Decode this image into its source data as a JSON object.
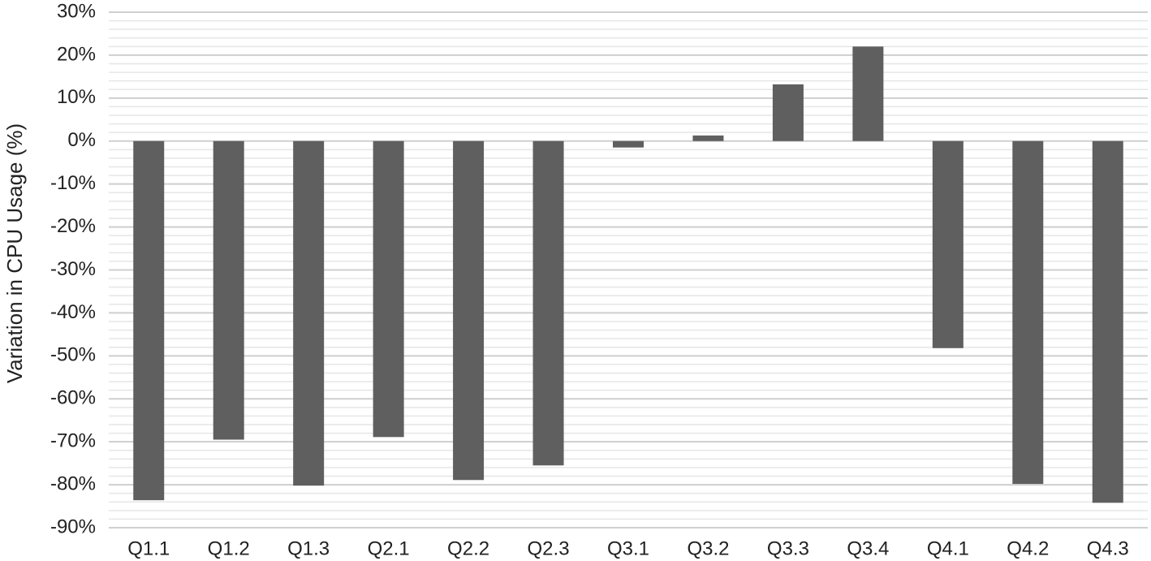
{
  "chart_data": {
    "type": "bar",
    "y_label": "Variation in CPU Usage (%)",
    "categories": [
      "Q1.1",
      "Q1.2",
      "Q1.3",
      "Q2.1",
      "Q2.2",
      "Q2.3",
      "Q3.1",
      "Q3.2",
      "Q3.3",
      "Q3.4",
      "Q4.1",
      "Q4.2",
      "Q4.3"
    ],
    "values": [
      -83.6,
      -69.5,
      -80.2,
      -68.9,
      -78.9,
      -75.5,
      -1.5,
      1.3,
      13.2,
      22.0,
      -48.2,
      -79.8,
      -84.2
    ],
    "color": "#5f5f5f",
    "ylim": [
      -90,
      30
    ],
    "yticks": [
      {
        "value": 30,
        "label": "30%"
      },
      {
        "value": 20,
        "label": "20%"
      },
      {
        "value": 10,
        "label": "10%"
      },
      {
        "value": 0,
        "label": "0%"
      },
      {
        "value": -10,
        "label": "-10%"
      },
      {
        "value": -20,
        "label": "-20%"
      },
      {
        "value": -30,
        "label": "-30%"
      },
      {
        "value": -40,
        "label": "-40%"
      },
      {
        "value": -50,
        "label": "-50%"
      },
      {
        "value": -60,
        "label": "-60%"
      },
      {
        "value": -70,
        "label": "-70%"
      },
      {
        "value": -80,
        "label": "-80%"
      },
      {
        "value": -90,
        "label": "-90%"
      }
    ],
    "grid": true,
    "minor_grid_step": 2
  }
}
